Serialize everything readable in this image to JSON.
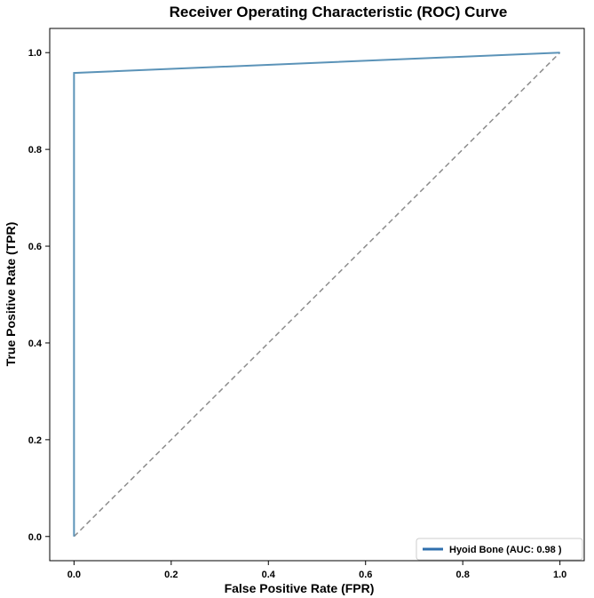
{
  "chart_data": {
    "type": "line",
    "title": "Receiver Operating Characteristic (ROC) Curve",
    "xlabel": "False Positive Rate (FPR)",
    "ylabel": "True Positive Rate (TPR)",
    "xlim": [
      -0.05,
      1.05
    ],
    "ylim": [
      -0.05,
      1.05
    ],
    "xticks": [
      0.0,
      0.2,
      0.4,
      0.6,
      0.8,
      1.0
    ],
    "yticks": [
      0.0,
      0.2,
      0.4,
      0.6,
      0.8,
      1.0
    ],
    "xtick_labels": [
      "0.0",
      "0.2",
      "0.4",
      "0.6",
      "0.8",
      "1.0"
    ],
    "ytick_labels": [
      "0.0",
      "0.2",
      "0.4",
      "0.6",
      "0.8",
      "1.0"
    ],
    "grid": false,
    "legend_position": "lower-right",
    "series": [
      {
        "name": "Hyoid Bone (AUC: 0.98 )",
        "color": "#5b93b8",
        "style": "solid",
        "x": [
          0.0,
          0.0,
          1.0
        ],
        "y": [
          0.0,
          0.958,
          1.0
        ]
      }
    ],
    "reference_line": {
      "color": "#8c8c8c",
      "style": "dashed",
      "x": [
        0.0,
        1.0
      ],
      "y": [
        0.0,
        1.0
      ]
    },
    "legend_swatch_color": "#2f6fad"
  }
}
